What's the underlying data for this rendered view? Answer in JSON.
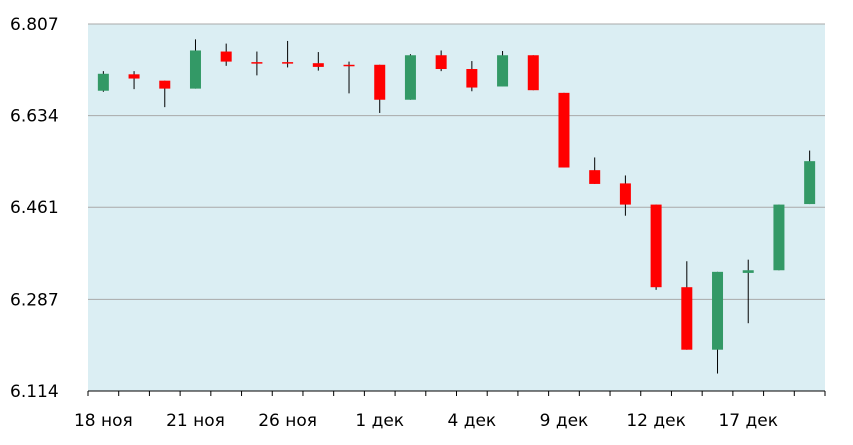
{
  "chart_data": {
    "type": "candlestick",
    "title": "",
    "xlabel": "",
    "ylabel": "",
    "ylim": [
      6.114,
      6.807
    ],
    "y_ticks": [
      "6.807",
      "6.634",
      "6.461",
      "6.287",
      "6.114"
    ],
    "x_ticks": [
      {
        "index": 0,
        "label": "18 ноя"
      },
      {
        "index": 3,
        "label": "21 ноя"
      },
      {
        "index": 6,
        "label": "26 ноя"
      },
      {
        "index": 9,
        "label": "1 дек"
      },
      {
        "index": 12,
        "label": "4 дек"
      },
      {
        "index": 15,
        "label": "9 дек"
      },
      {
        "index": 18,
        "label": "12 дек"
      },
      {
        "index": 21,
        "label": "17 дек"
      }
    ],
    "grid": true,
    "legend": "none",
    "colors": {
      "up": "#339966",
      "down": "#ff0000",
      "background": "#dbeef3",
      "grid": "#a9a9a9"
    },
    "candles": [
      {
        "open": 6.681,
        "close": 6.713,
        "high": 6.718,
        "low": 6.679
      },
      {
        "open": 6.712,
        "close": 6.704,
        "high": 6.718,
        "low": 6.684
      },
      {
        "open": 6.7,
        "close": 6.685,
        "high": 6.7,
        "low": 6.65
      },
      {
        "open": 6.685,
        "close": 6.757,
        "high": 6.778,
        "low": 6.685
      },
      {
        "open": 6.755,
        "close": 6.736,
        "high": 6.77,
        "low": 6.728
      },
      {
        "open": 6.735,
        "close": 6.733,
        "high": 6.755,
        "low": 6.71
      },
      {
        "open": 6.735,
        "close": 6.733,
        "high": 6.775,
        "low": 6.725
      },
      {
        "open": 6.733,
        "close": 6.726,
        "high": 6.754,
        "low": 6.719
      },
      {
        "open": 6.73,
        "close": 6.728,
        "high": 6.736,
        "low": 6.676
      },
      {
        "open": 6.73,
        "close": 6.664,
        "high": 6.73,
        "low": 6.639
      },
      {
        "open": 6.664,
        "close": 6.748,
        "high": 6.75,
        "low": 6.664
      },
      {
        "open": 6.748,
        "close": 6.722,
        "high": 6.757,
        "low": 6.718
      },
      {
        "open": 6.722,
        "close": 6.687,
        "high": 6.737,
        "low": 6.68
      },
      {
        "open": 6.689,
        "close": 6.748,
        "high": 6.756,
        "low": 6.689
      },
      {
        "open": 6.748,
        "close": 6.682,
        "high": 6.748,
        "low": 6.682
      },
      {
        "open": 6.677,
        "close": 6.536,
        "high": 6.677,
        "low": 6.536
      },
      {
        "open": 6.531,
        "close": 6.505,
        "high": 6.555,
        "low": 6.505
      },
      {
        "open": 6.506,
        "close": 6.466,
        "high": 6.521,
        "low": 6.445
      },
      {
        "open": 6.466,
        "close": 6.31,
        "high": 6.466,
        "low": 6.305
      },
      {
        "open": 6.31,
        "close": 6.192,
        "high": 6.359,
        "low": 6.192
      },
      {
        "open": 6.192,
        "close": 6.339,
        "high": 6.339,
        "low": 6.147
      },
      {
        "open": 6.337,
        "close": 6.342,
        "high": 6.362,
        "low": 6.242
      },
      {
        "open": 6.342,
        "close": 6.466,
        "high": 6.466,
        "low": 6.342
      },
      {
        "open": 6.467,
        "close": 6.548,
        "high": 6.568,
        "low": 6.467
      }
    ]
  }
}
